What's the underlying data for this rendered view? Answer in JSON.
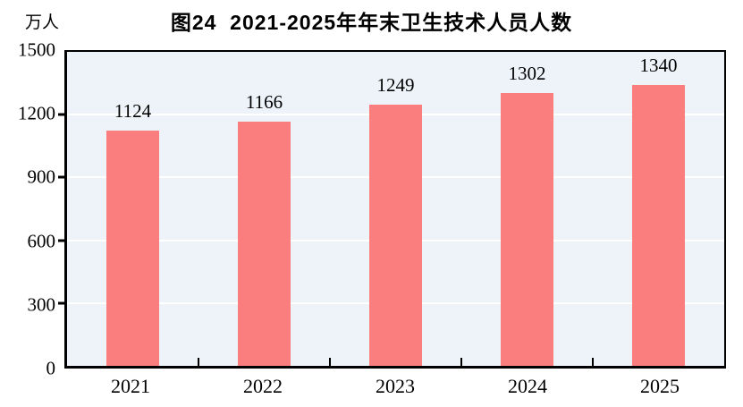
{
  "figure": {
    "title": "图24  2021-2025年年末卫生技术人员人数",
    "y_axis_unit": "万人"
  },
  "y_axis": {
    "ticks": [
      "1500",
      "1200",
      "900",
      "600",
      "300",
      "0"
    ]
  },
  "chart_data": {
    "type": "bar",
    "title": "图24  2021-2025年年末卫生技术人员人数",
    "categories": [
      "2021",
      "2022",
      "2023",
      "2024",
      "2025"
    ],
    "values": [
      1124,
      1166,
      1249,
      1302,
      1340
    ],
    "xlabel": "",
    "ylabel": "万人",
    "ylim": [
      0,
      1500
    ],
    "ytick_interval": 300,
    "yticks": [
      0,
      300,
      600,
      900,
      1200,
      1500
    ],
    "grid": true,
    "legend_position": "none",
    "colors": {
      "bar": "#FB7E7E",
      "plot_background": "#EDF3F8",
      "gridline": "#FFFFFF",
      "axis": "#000000",
      "text": "#000000"
    }
  }
}
